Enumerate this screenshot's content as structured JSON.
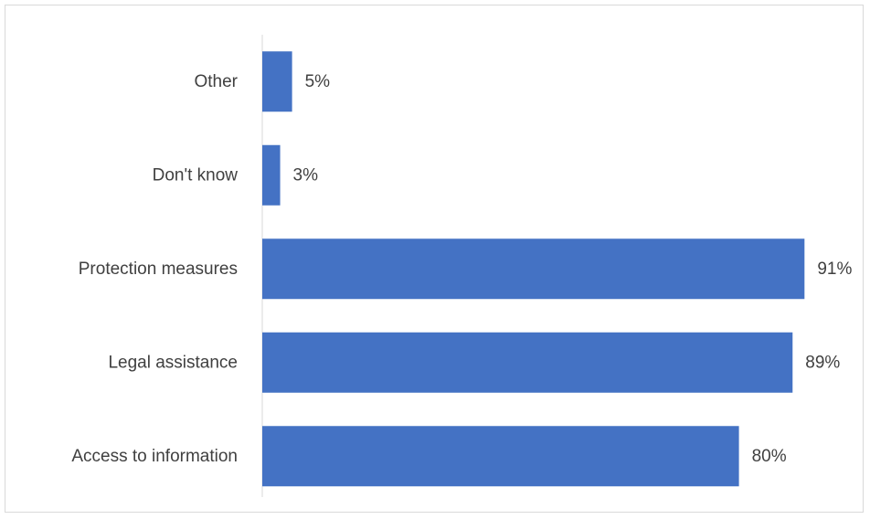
{
  "chart_data": {
    "type": "bar",
    "orientation": "horizontal",
    "categories": [
      "Other",
      "Don't know",
      "Protection measures",
      "Legal assistance",
      "Access to information"
    ],
    "values": [
      5,
      3,
      91,
      89,
      80
    ],
    "value_labels": [
      "5%",
      "3%",
      "91%",
      "89%",
      "80%"
    ],
    "xlim": [
      0,
      100
    ],
    "grid": false,
    "legend": "none",
    "bar_color": "#4472c4",
    "axis_color": "#d9d9d9",
    "text_color": "#404040"
  }
}
